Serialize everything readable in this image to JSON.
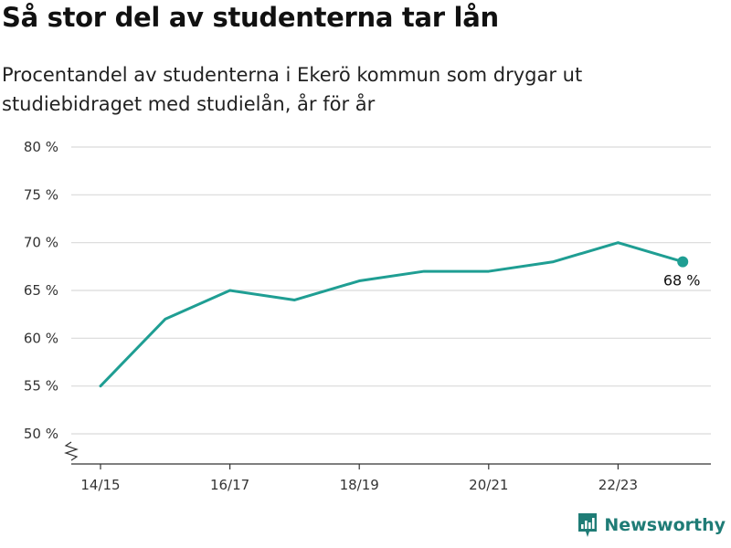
{
  "title": "Så stor del av studenterna tar lån",
  "subtitle": "Procentandel av studenterna i Ekerö kommun som drygar ut studiebidraget med studielån, år för år",
  "brand": {
    "name": "Newsworthy"
  },
  "colors": {
    "line": "#1f9e93",
    "grid": "#d9d9d9",
    "axis": "#333333",
    "text": "#333333",
    "brand": "#1f7c76"
  },
  "chart_data": {
    "type": "line",
    "x": [
      "14/15",
      "15/16",
      "16/17",
      "17/18",
      "18/19",
      "19/20",
      "20/21",
      "21/22",
      "22/23",
      "23/24"
    ],
    "series": [
      {
        "values": [
          55,
          62,
          65,
          64,
          66,
          67,
          67,
          68,
          70,
          68
        ]
      }
    ],
    "ylim": [
      50,
      80
    ],
    "y_ticks": [
      80,
      75,
      70,
      65,
      60,
      55,
      50
    ],
    "y_tick_labels": [
      "80 %",
      "75 %",
      "70 %",
      "65 %",
      "60 %",
      "55 %",
      "50 %"
    ],
    "x_tick_labels": [
      "14/15",
      "16/17",
      "18/19",
      "20/21",
      "22/23"
    ],
    "end_label": "68 %",
    "grid": true,
    "axis_break": true
  }
}
